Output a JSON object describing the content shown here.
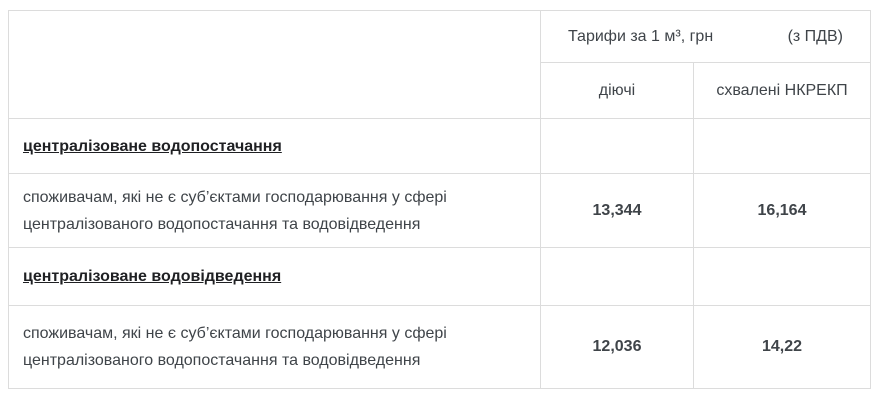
{
  "table": {
    "header": {
      "tariff_title": "Тарифи за 1 м³, грн",
      "vat_note": "(з ПДВ)",
      "col_current": "діючі",
      "col_approved": "схвалені НКРЕКП"
    },
    "rows": [
      {
        "type": "section",
        "label": "централізоване водопостачання",
        "current": "",
        "approved": ""
      },
      {
        "type": "data",
        "label": "споживачам, які не є суб’єктами господарювання у сфері централізованого водопостачання та водовідведення",
        "current": "13,344",
        "approved": "16,164"
      },
      {
        "type": "section",
        "label": "централізоване водовідведення",
        "current": "",
        "approved": ""
      },
      {
        "type": "data",
        "label": "споживачам, які не є суб’єктами господарювання у сфері централізованого водопостачання та водовідведення",
        "current": "12,036",
        "approved": "14,22"
      }
    ],
    "colors": {
      "border": "#dcdcdc",
      "text": "#3f4449",
      "emphasis_text": "#1b1c1e",
      "background": "#ffffff"
    }
  }
}
